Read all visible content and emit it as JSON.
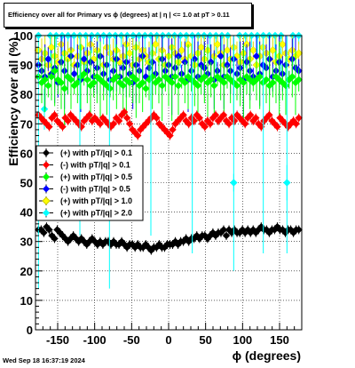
{
  "title": "Efficiency over all for Primary vs ϕ (degrees) at |  η | <= 1.0 at pT > 0.11",
  "timestamp": "Wed Sep 18 16:37:19 2024",
  "chart_data": {
    "type": "scatter",
    "xlabel": "ϕ (degrees)",
    "ylabel": "Efficiency over all (%)",
    "xlim": [
      -180,
      180
    ],
    "ylim": [
      0,
      100
    ],
    "x_ticks": [
      -150,
      -100,
      -50,
      0,
      50,
      100,
      150
    ],
    "y_ticks": [
      0,
      10,
      20,
      30,
      40,
      50,
      60,
      70,
      80,
      90,
      100
    ],
    "grid": true,
    "legend_position": "middle-left",
    "series": [
      {
        "name": "(+) with pT/|q| > 0.1",
        "color": "#000000",
        "marker": "diamond",
        "approx_level": 32,
        "x_start": -176,
        "x_end": 176,
        "x_step": 3.6,
        "values": [
          34,
          34,
          33,
          35,
          34,
          32,
          31,
          34,
          33,
          32,
          31,
          30,
          31,
          32,
          31,
          30,
          31,
          30,
          29,
          30,
          31,
          30,
          29,
          30,
          29,
          30,
          30,
          29,
          30,
          29,
          29,
          30,
          29,
          28,
          29,
          29,
          28,
          29,
          28,
          28,
          29,
          28,
          27,
          28,
          28,
          29,
          28,
          28,
          29,
          29,
          29,
          30,
          29,
          30,
          30,
          31,
          30,
          31,
          31,
          32,
          31,
          32,
          32,
          31,
          32,
          33,
          32,
          33,
          33,
          34,
          32,
          34,
          33,
          34,
          33,
          33,
          34,
          33,
          34,
          33,
          34,
          33,
          34,
          35,
          34,
          34,
          33,
          34,
          34,
          35,
          34,
          34,
          33,
          34,
          34,
          33,
          34,
          34
        ]
      },
      {
        "name": "(-) with pT/|q| > 0.1",
        "color": "#ff0000",
        "marker": "diamond",
        "approx_level": 71,
        "x_start": -176,
        "x_end": 176,
        "x_step": 3.6,
        "values": [
          73,
          72,
          71,
          70,
          69,
          72,
          73,
          71,
          70,
          69,
          72,
          71,
          73,
          72,
          71,
          70,
          69,
          71,
          72,
          73,
          71,
          72,
          71,
          70,
          72,
          71,
          70,
          69,
          70,
          72,
          71,
          73,
          74,
          72,
          70,
          68,
          67,
          66,
          68,
          69,
          70,
          71,
          72,
          73,
          72,
          70,
          69,
          68,
          67,
          66,
          68,
          70,
          71,
          72,
          73,
          71,
          70,
          72,
          71,
          73,
          72,
          70,
          69,
          71,
          70,
          72,
          73,
          71,
          72,
          73,
          71,
          70,
          72,
          71,
          73,
          72,
          71,
          70,
          72,
          73,
          71,
          72,
          70,
          69,
          71,
          72,
          73,
          71,
          70,
          69,
          72,
          71,
          70,
          69,
          70,
          71,
          70,
          72
        ]
      },
      {
        "name": "(+) with pT/|q| > 0.5",
        "color": "#00ff00",
        "marker": "diamond",
        "approx_level": 85,
        "x_start": -176,
        "x_end": 176,
        "x_step": 4.4,
        "values": [
          86,
          84,
          85,
          83,
          86,
          88,
          85,
          84,
          82,
          86,
          85,
          83,
          84,
          86,
          87,
          85,
          83,
          84,
          86,
          85,
          84,
          83,
          82,
          85,
          86,
          84,
          83,
          85,
          84,
          86,
          85,
          83,
          84,
          82,
          85,
          86,
          84,
          85,
          83,
          86,
          85,
          84,
          86,
          83,
          85,
          84,
          86,
          85,
          84,
          83,
          85,
          86,
          84,
          85,
          83,
          86,
          85,
          84,
          86,
          85,
          84,
          83,
          85,
          84,
          86,
          85,
          84,
          85,
          86,
          84,
          85,
          83,
          84,
          86,
          85,
          84,
          83,
          85,
          86,
          84,
          85
        ]
      },
      {
        "name": "(-) with pT/|q| > 0.5",
        "color": "#0000ff",
        "marker": "diamond",
        "approx_level": 88,
        "x_start": -176,
        "x_end": 176,
        "x_step": 4.4,
        "values": [
          90,
          88,
          86,
          92,
          87,
          89,
          84,
          91,
          88,
          86,
          93,
          87,
          90,
          85,
          92,
          88,
          91,
          86,
          89,
          93,
          87,
          90,
          85,
          88,
          92,
          86,
          89,
          91,
          87,
          84,
          90,
          88,
          93,
          86,
          89,
          91,
          87,
          85,
          92,
          88,
          90,
          86,
          89,
          93,
          87,
          91,
          85,
          88,
          92,
          86,
          90,
          89,
          87,
          91,
          85,
          88,
          93,
          86,
          90,
          88,
          92,
          87,
          89,
          85,
          91,
          88,
          86,
          93,
          87,
          90,
          89,
          92,
          86,
          88,
          91,
          87,
          90,
          85,
          92,
          89,
          88
        ]
      },
      {
        "name": "(+) with pT/|q| > 1.0",
        "color": "#ffff00",
        "marker": "diamond",
        "approx_level": 93,
        "x_start": -176,
        "x_end": 176,
        "x_step": 4.4,
        "values": [
          95,
          92,
          94,
          90,
          96,
          93,
          91,
          97,
          94,
          92,
          95,
          90,
          93,
          96,
          91,
          94,
          97,
          92,
          95,
          93,
          90,
          96,
          94,
          92,
          95,
          91,
          93,
          97,
          94,
          90,
          96,
          92,
          95,
          93,
          91,
          94,
          97,
          92,
          95,
          90,
          93,
          96,
          94,
          91,
          95,
          92,
          97,
          93,
          90,
          94,
          96,
          92,
          95,
          91,
          93,
          97,
          94,
          90,
          95,
          92,
          96,
          93,
          91,
          94,
          97,
          92,
          95,
          90,
          93,
          96,
          94,
          92,
          95,
          91,
          93,
          97,
          94,
          92,
          95,
          93,
          94
        ]
      },
      {
        "name": "(+) with pT/|q| > 2.0",
        "color": "#00ffff",
        "marker": "diamond",
        "approx_level": 100,
        "x_start": -176,
        "x_end": 176,
        "x_step": 8,
        "values": [
          100,
          75,
          100,
          100,
          100,
          100,
          100,
          100,
          100,
          100,
          100,
          100,
          100,
          100,
          100,
          100,
          100,
          100,
          100,
          100,
          100,
          100,
          100,
          100,
          100,
          100,
          100,
          100,
          100,
          100,
          100,
          100,
          100,
          50,
          100,
          100,
          100,
          100,
          100,
          100,
          100,
          100,
          50,
          100,
          100
        ]
      }
    ]
  }
}
